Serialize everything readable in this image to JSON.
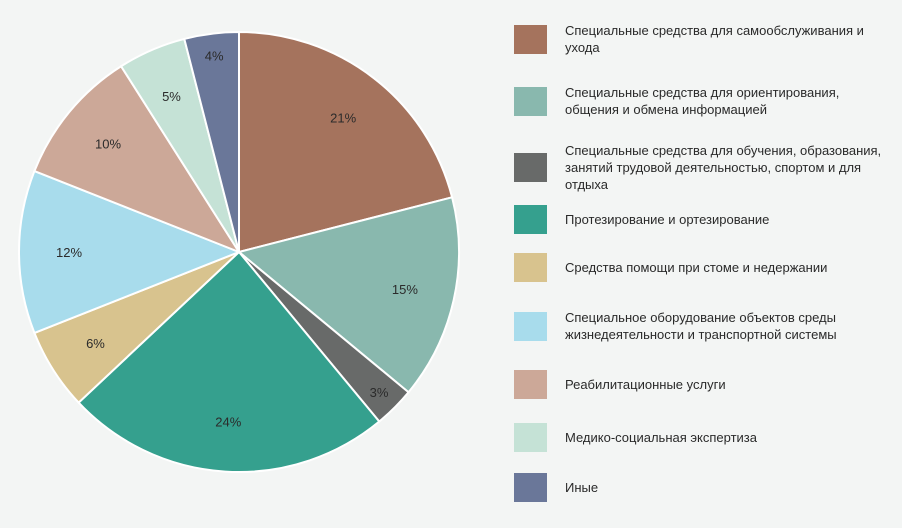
{
  "chart_data": {
    "type": "pie",
    "title": "",
    "slices": [
      {
        "label": "Специальные средства для самообслуживания и ухода",
        "value": 21,
        "value_label": "21%",
        "color": "#a5735d"
      },
      {
        "label": "Специальные средства для ориентирования, общения и обмена информацией",
        "value": 15,
        "value_label": "15%",
        "color": "#89b8ae"
      },
      {
        "label": "Специальные средства для обучения, образования, занятий трудовой деятельностью, спортом и для отдыха",
        "value": 3,
        "value_label": "3%",
        "color": "#686a69"
      },
      {
        "label": "Протезирование и ортезирование",
        "value": 24,
        "value_label": "24%",
        "color": "#35a08e"
      },
      {
        "label": "Средства помощи при стоме и недержании",
        "value": 6,
        "value_label": "6%",
        "color": "#d8c38e"
      },
      {
        "label": "Специальное оборудование объектов среды жизнедеятельности и транспортной системы",
        "value": 12,
        "value_label": "12%",
        "color": "#a8dcec"
      },
      {
        "label": "Реабилитационные услуги",
        "value": 10,
        "value_label": "10%",
        "color": "#cca898"
      },
      {
        "label": "Медико-социальная экспертиза",
        "value": 5,
        "value_label": "5%",
        "color": "#c5e2d6"
      },
      {
        "label": "Иные",
        "value": 4,
        "value_label": "4%",
        "color": "#6a7799"
      }
    ],
    "legend_position": "right",
    "start": "top",
    "direction": "clockwise"
  }
}
